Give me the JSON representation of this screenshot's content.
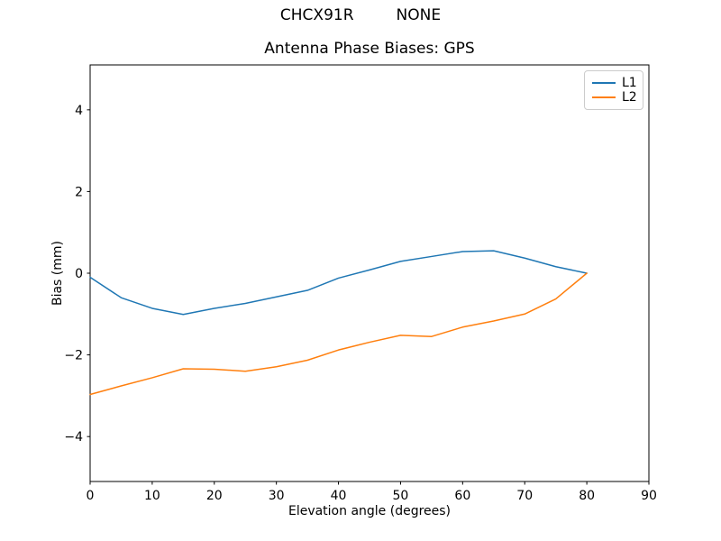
{
  "header": {
    "station": "CHCX91R",
    "antenna": "NONE"
  },
  "chart_data": {
    "type": "line",
    "title": "Antenna Phase Biases: GPS",
    "suptitle": "CHCX91R         NONE",
    "xlabel": "Elevation angle (degrees)",
    "ylabel": "Bias (mm)",
    "xlim": [
      0,
      90
    ],
    "ylim": [
      -5.1,
      5.1
    ],
    "grid": false,
    "legend_position": "upper right",
    "x_ticks": [
      0,
      10,
      20,
      30,
      40,
      50,
      60,
      70,
      80,
      90
    ],
    "y_ticks": {
      "values": [
        4,
        2,
        0,
        -2,
        -4
      ],
      "labels": [
        "4",
        "2",
        "0",
        "−2",
        "−4"
      ]
    },
    "x": [
      0,
      5,
      10,
      15,
      20,
      25,
      30,
      35,
      40,
      45,
      50,
      55,
      60,
      65,
      70,
      75,
      80
    ],
    "series": [
      {
        "name": "L1",
        "color": "#1f77b4",
        "values": [
          -0.1,
          -0.6,
          -0.86,
          -1.01,
          -0.86,
          -0.74,
          -0.58,
          -0.42,
          -0.12,
          0.08,
          0.29,
          0.41,
          0.53,
          0.55,
          0.37,
          0.16,
          0.0
        ]
      },
      {
        "name": "L2",
        "color": "#ff7f0e",
        "values": [
          -2.97,
          -2.76,
          -2.56,
          -2.34,
          -2.35,
          -2.4,
          -2.29,
          -2.13,
          -1.88,
          -1.69,
          -1.52,
          -1.55,
          -1.32,
          -1.17,
          -1.0,
          -0.63,
          0.0
        ]
      }
    ]
  }
}
